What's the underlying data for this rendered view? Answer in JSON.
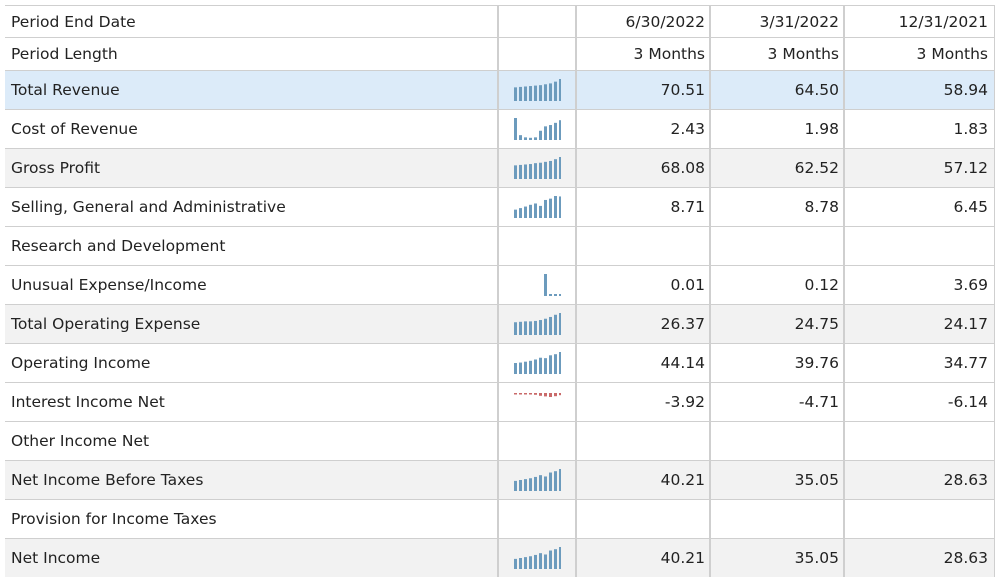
{
  "header": {
    "period_end_label": "Period End Date",
    "period_length_label": "Period Length",
    "dates": [
      "6/30/2022",
      "3/31/2022",
      "12/31/2021"
    ],
    "lengths": [
      "3 Months",
      "3 Months",
      "3 Months"
    ]
  },
  "colors": {
    "spark_positive": "#6c9bbd",
    "spark_negative": "#c96a6a",
    "selected_row": "#dcebf9",
    "alt_row": "#f2f2f2"
  },
  "rows": [
    {
      "label": "Total Revenue",
      "values": [
        "70.51",
        "64.50",
        "58.94"
      ],
      "spark": [
        0.62,
        0.64,
        0.66,
        0.68,
        0.7,
        0.72,
        0.76,
        0.8,
        0.88,
        1.0
      ],
      "neg": false,
      "style": "sel"
    },
    {
      "label": "Cost of Revenue",
      "values": [
        "2.43",
        "1.98",
        "1.83"
      ],
      "spark": [
        1.0,
        0.22,
        0.12,
        0.1,
        0.12,
        0.42,
        0.62,
        0.68,
        0.78,
        0.9
      ],
      "neg": false,
      "style": "white"
    },
    {
      "label": "Gross Profit",
      "values": [
        "68.08",
        "62.52",
        "57.12"
      ],
      "spark": [
        0.62,
        0.64,
        0.66,
        0.68,
        0.72,
        0.74,
        0.78,
        0.82,
        0.9,
        1.0
      ],
      "neg": false,
      "style": "alt"
    },
    {
      "label": "Selling, General and Administrative",
      "values": [
        "8.71",
        "8.78",
        "6.45"
      ],
      "spark": [
        0.38,
        0.45,
        0.52,
        0.6,
        0.66,
        0.55,
        0.82,
        0.88,
        1.0,
        0.98
      ],
      "neg": false,
      "style": "white"
    },
    {
      "label": "Research and Development",
      "values": [
        "",
        "",
        ""
      ],
      "spark": [],
      "neg": false,
      "style": "white"
    },
    {
      "label": "Unusual Expense/Income",
      "values": [
        "0.01",
        "0.12",
        "3.69"
      ],
      "spark": [
        0,
        0,
        0,
        0,
        0,
        0,
        1.0,
        0.04,
        0.02,
        0.02
      ],
      "neg": false,
      "style": "white"
    },
    {
      "label": "Total Operating Expense",
      "values": [
        "26.37",
        "24.75",
        "24.17"
      ],
      "spark": [
        0.58,
        0.6,
        0.62,
        0.62,
        0.64,
        0.68,
        0.74,
        0.82,
        0.92,
        1.0
      ],
      "neg": false,
      "style": "alt"
    },
    {
      "label": "Operating Income",
      "values": [
        "44.14",
        "39.76",
        "34.77"
      ],
      "spark": [
        0.5,
        0.52,
        0.56,
        0.6,
        0.66,
        0.74,
        0.72,
        0.85,
        0.9,
        1.0
      ],
      "neg": false,
      "style": "white"
    },
    {
      "label": "Interest Income Net",
      "values": [
        "-3.92",
        "-4.71",
        "-6.14"
      ],
      "spark": [
        0.08,
        0.08,
        0.1,
        0.12,
        0.18,
        0.28,
        0.34,
        0.4,
        0.32,
        0.22
      ],
      "neg": true,
      "style": "white"
    },
    {
      "label": "Other Income Net",
      "values": [
        "",
        "",
        ""
      ],
      "spark": [],
      "neg": false,
      "style": "white"
    },
    {
      "label": "Net Income Before Taxes",
      "values": [
        "40.21",
        "35.05",
        "28.63"
      ],
      "spark": [
        0.46,
        0.5,
        0.54,
        0.58,
        0.64,
        0.72,
        0.66,
        0.84,
        0.9,
        1.0
      ],
      "neg": false,
      "style": "alt"
    },
    {
      "label": "Provision for Income Taxes",
      "values": [
        "",
        "",
        ""
      ],
      "spark": [],
      "neg": false,
      "style": "white"
    },
    {
      "label": "Net Income",
      "values": [
        "40.21",
        "35.05",
        "28.63"
      ],
      "spark": [
        0.46,
        0.5,
        0.54,
        0.58,
        0.64,
        0.72,
        0.66,
        0.84,
        0.9,
        1.0
      ],
      "neg": false,
      "style": "alt"
    }
  ]
}
